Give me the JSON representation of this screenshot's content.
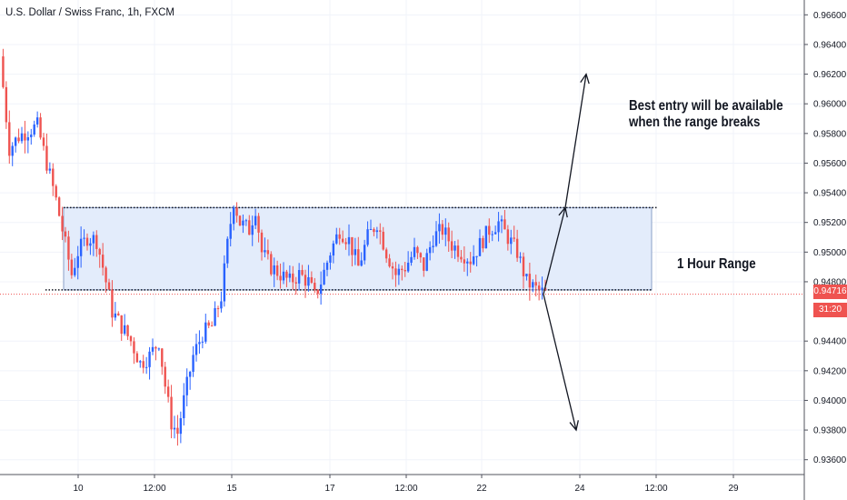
{
  "header": {
    "title": "U.S. Dollar / Swiss Franc, 1h, FXCM"
  },
  "annotations": {
    "entry_note": "Best entry will be available\nwhen the range breaks",
    "range_label": "1 Hour Range"
  },
  "price_axis": {
    "current_price": "0.94716",
    "countdown": "31:20",
    "current_price_color": "#ef5350",
    "countdown_color": "#ef5350"
  },
  "colors": {
    "up": "#2962ff",
    "down": "#ef5350",
    "range_fill": "#e3ecfb",
    "range_stroke": "#8a9fc7",
    "grid": "#f0f3fa"
  },
  "chart_data": {
    "type": "candlestick",
    "title": "U.S. Dollar / Swiss Franc, 1h, FXCM",
    "ylim": [
      0.935,
      0.967
    ],
    "y_ticks": [
      "0.96600",
      "0.96400",
      "0.96200",
      "0.96000",
      "0.95800",
      "0.95600",
      "0.95400",
      "0.95200",
      "0.95000",
      "0.94800",
      "0.94400",
      "0.94200",
      "0.94000",
      "0.93800",
      "0.93600"
    ],
    "x_ticks": [
      "10",
      "12:00",
      "15",
      "17",
      "12:00",
      "22",
      "24",
      "12:00",
      "29"
    ],
    "grid": true,
    "close_path": [
      [
        0,
        0.9632
      ],
      [
        3,
        0.957
      ],
      [
        6,
        0.9578
      ],
      [
        9,
        0.9582
      ],
      [
        12,
        0.9585
      ],
      [
        15,
        0.956
      ],
      [
        18,
        0.9535
      ],
      [
        21,
        0.9505
      ],
      [
        23,
        0.9485
      ],
      [
        25,
        0.95
      ],
      [
        28,
        0.951
      ],
      [
        31,
        0.9508
      ],
      [
        33,
        0.949
      ],
      [
        36,
        0.946
      ],
      [
        39,
        0.945
      ],
      [
        42,
        0.944
      ],
      [
        45,
        0.9425
      ],
      [
        48,
        0.943
      ],
      [
        51,
        0.944
      ],
      [
        53,
        0.941
      ],
      [
        55,
        0.9385
      ],
      [
        57,
        0.9378
      ],
      [
        59,
        0.94
      ],
      [
        62,
        0.943
      ],
      [
        65,
        0.9445
      ],
      [
        68,
        0.945
      ],
      [
        71,
        0.947
      ],
      [
        73,
        0.9505
      ],
      [
        75,
        0.9535
      ],
      [
        77,
        0.952
      ],
      [
        80,
        0.9515
      ],
      [
        82,
        0.953
      ],
      [
        84,
        0.95
      ],
      [
        87,
        0.949
      ],
      [
        90,
        0.9485
      ],
      [
        93,
        0.948
      ],
      [
        96,
        0.9485
      ],
      [
        99,
        0.948
      ],
      [
        101,
        0.947
      ],
      [
        103,
        0.948
      ],
      [
        106,
        0.95
      ],
      [
        109,
        0.9515
      ],
      [
        112,
        0.9508
      ],
      [
        115,
        0.949
      ],
      [
        118,
        0.951
      ],
      [
        121,
        0.952
      ],
      [
        124,
        0.95
      ],
      [
        127,
        0.9485
      ],
      [
        130,
        0.949
      ],
      [
        133,
        0.95
      ],
      [
        136,
        0.949
      ],
      [
        139,
        0.951
      ],
      [
        142,
        0.9515
      ],
      [
        145,
        0.9505
      ],
      [
        148,
        0.95
      ],
      [
        151,
        0.9495
      ],
      [
        154,
        0.9505
      ],
      [
        157,
        0.9515
      ],
      [
        160,
        0.952
      ],
      [
        163,
        0.951
      ],
      [
        166,
        0.95
      ],
      [
        169,
        0.948
      ],
      [
        172,
        0.9475
      ],
      [
        175,
        0.9472
      ]
    ],
    "range_box": {
      "top": 0.953,
      "bottom": 0.94745,
      "label": "1 Hour Range"
    },
    "current_price": 0.94716,
    "projection_up_target": 0.962,
    "projection_down_target": 0.938
  }
}
